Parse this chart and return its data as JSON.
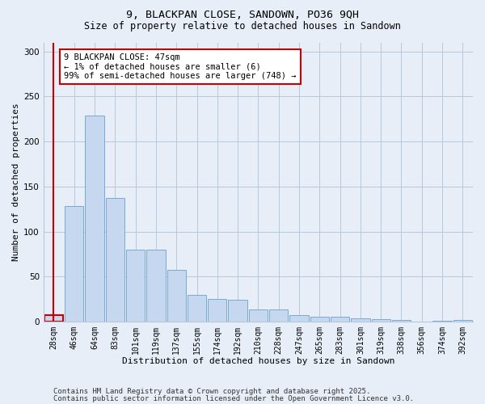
{
  "title_line1": "9, BLACKPAN CLOSE, SANDOWN, PO36 9QH",
  "title_line2": "Size of property relative to detached houses in Sandown",
  "xlabel": "Distribution of detached houses by size in Sandown",
  "ylabel": "Number of detached properties",
  "categories": [
    "28sqm",
    "46sqm",
    "64sqm",
    "83sqm",
    "101sqm",
    "119sqm",
    "137sqm",
    "155sqm",
    "174sqm",
    "192sqm",
    "210sqm",
    "228sqm",
    "247sqm",
    "265sqm",
    "283sqm",
    "301sqm",
    "319sqm",
    "338sqm",
    "356sqm",
    "374sqm",
    "392sqm"
  ],
  "values": [
    7,
    128,
    229,
    137,
    80,
    80,
    58,
    30,
    25,
    24,
    14,
    14,
    7,
    6,
    6,
    4,
    3,
    2,
    0,
    1,
    2
  ],
  "bar_color": "#c5d8f0",
  "bar_edge_color": "#7aaad0",
  "highlight_bar_index": 0,
  "highlight_edge_color": "#cc0000",
  "annotation_box_text": "9 BLACKPAN CLOSE: 47sqm\n← 1% of detached houses are smaller (6)\n99% of semi-detached houses are larger (748) →",
  "annotation_edge_color": "#cc0000",
  "ylim": [
    0,
    310
  ],
  "yticks": [
    0,
    50,
    100,
    150,
    200,
    250,
    300
  ],
  "footer_line1": "Contains HM Land Registry data © Crown copyright and database right 2025.",
  "footer_line2": "Contains public sector information licensed under the Open Government Licence v3.0.",
  "bg_color": "#e8eef8",
  "plot_bg_color": "#e8eef8",
  "grid_color": "#b8c8dc",
  "title_fontsize": 9.5,
  "subtitle_fontsize": 8.5,
  "axis_label_fontsize": 8,
  "tick_fontsize": 7,
  "annotation_fontsize": 7.5,
  "footer_fontsize": 6.5
}
